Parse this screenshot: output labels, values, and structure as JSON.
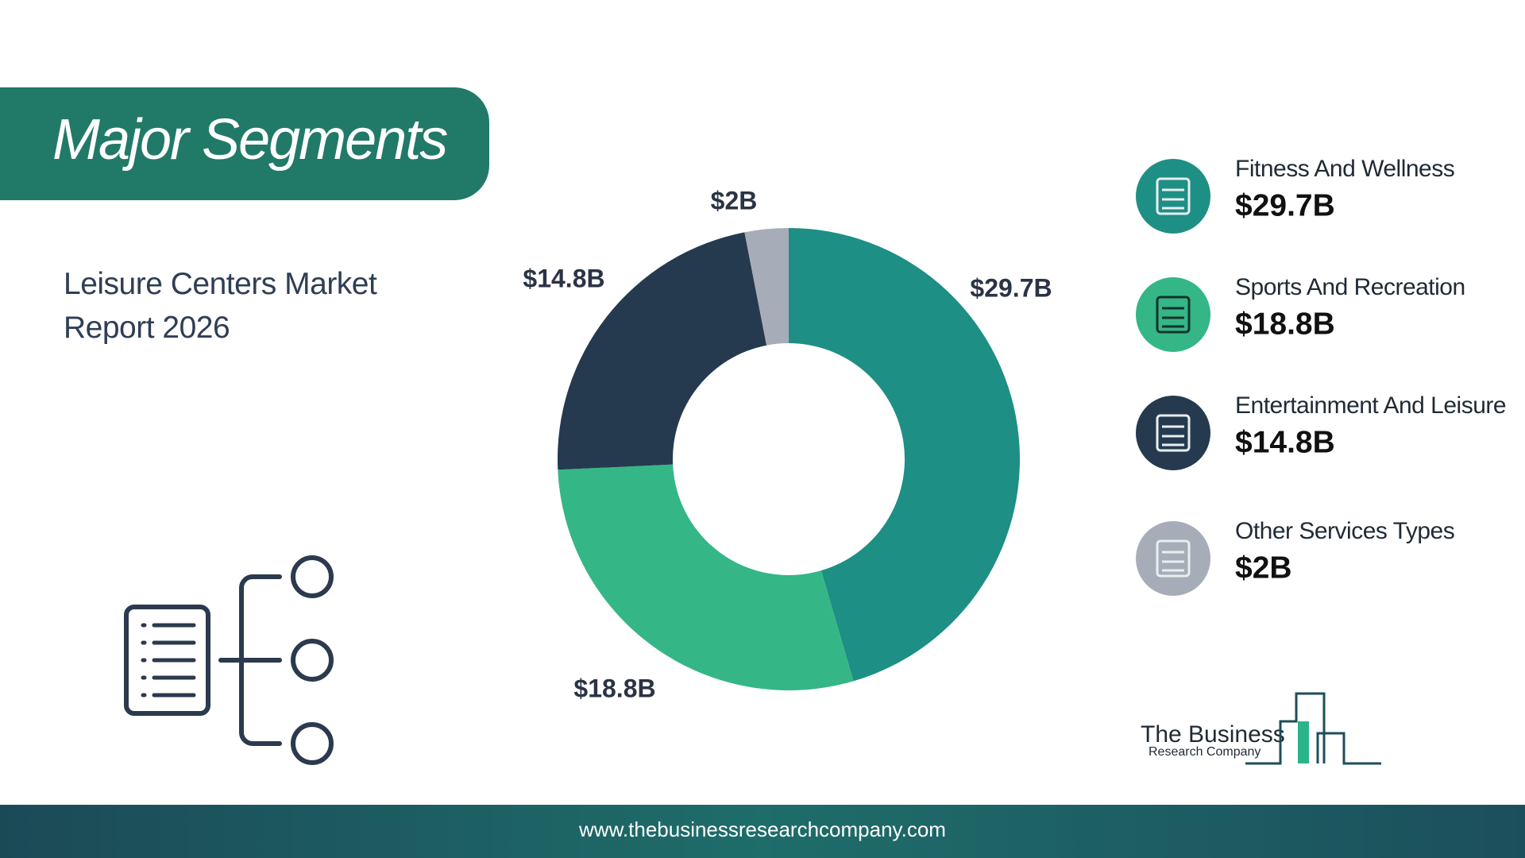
{
  "chart_data": {
    "type": "donut",
    "title": "Major Segments",
    "subtitle": "Leisure Centers Market Report 2026",
    "categories": [
      "Fitness And Wellness",
      "Sports And Recreation",
      "Entertainment And Leisure",
      "Other Services Types"
    ],
    "values": [
      29.7,
      18.8,
      14.8,
      2
    ],
    "value_labels": [
      "$29.7B",
      "$18.8B",
      "$14.8B",
      "$2B"
    ],
    "colors": [
      "#1e8f84",
      "#35b686",
      "#253a4f",
      "#a7adb8"
    ],
    "legend": "right"
  },
  "logo": {
    "line1": "The Business",
    "line2": "Research Company"
  },
  "footer": {
    "url": "www.thebusinessresearchcompany.com"
  }
}
